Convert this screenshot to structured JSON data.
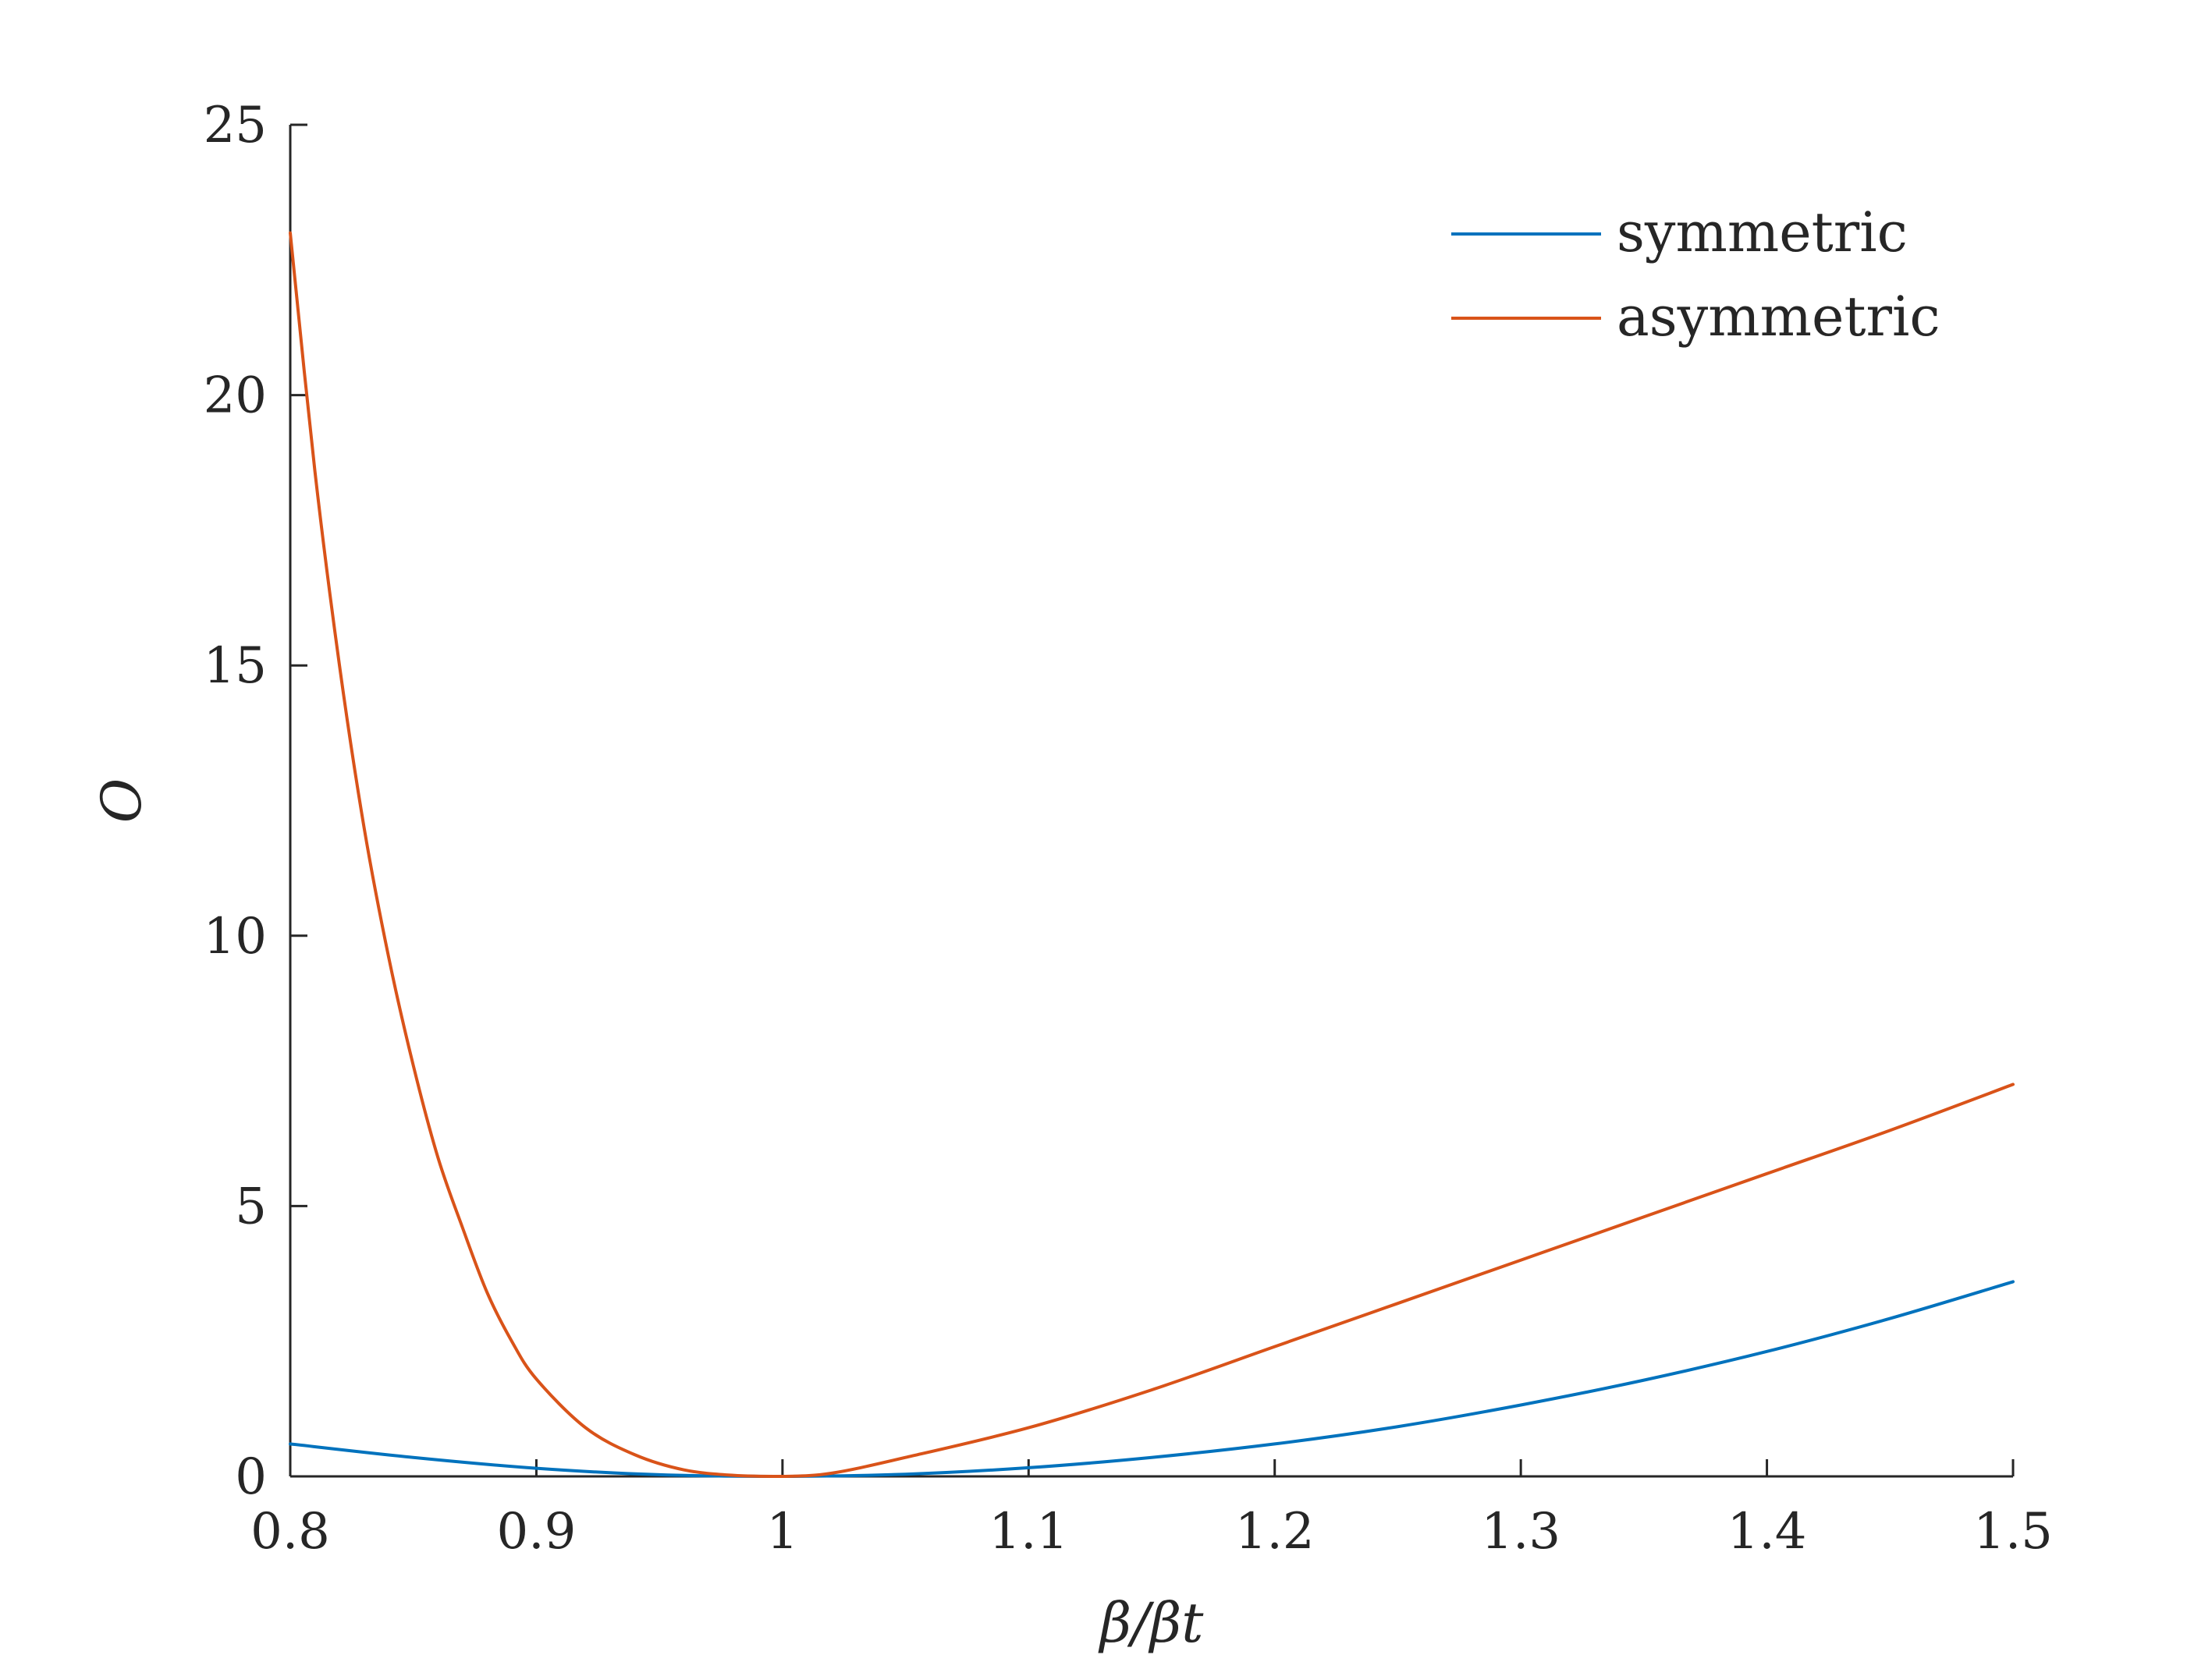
{
  "chart_data": {
    "type": "line",
    "xlabel": "β/βt",
    "ylabel": "O",
    "xlim": [
      0.8,
      1.5
    ],
    "ylim": [
      0,
      25
    ],
    "xticks": [
      0.8,
      0.9,
      1,
      1.1,
      1.2,
      1.3,
      1.4,
      1.5
    ],
    "xtick_labels": [
      "0.8",
      "0.9",
      "1",
      "1.1",
      "1.2",
      "1.3",
      "1.4",
      "1.5"
    ],
    "yticks": [
      0,
      5,
      10,
      15,
      20,
      25
    ],
    "ytick_labels": [
      "0",
      "5",
      "10",
      "15",
      "20",
      "25"
    ],
    "grid": false,
    "legend_position": "top-right",
    "series": [
      {
        "name": "symmetric",
        "color": "#0072BD",
        "x": [
          0.8,
          0.85,
          0.9,
          0.95,
          1.0,
          1.05,
          1.1,
          1.15,
          1.2,
          1.25,
          1.3,
          1.35,
          1.4,
          1.45,
          1.5
        ],
        "y": [
          0.6,
          0.35,
          0.15,
          0.03,
          0.0,
          0.04,
          0.16,
          0.35,
          0.6,
          0.92,
          1.32,
          1.78,
          2.31,
          2.92,
          3.6
        ]
      },
      {
        "name": "asymmetric",
        "color": "#D95319",
        "x": [
          0.8,
          0.81,
          0.82,
          0.83,
          0.84,
          0.85,
          0.86,
          0.87,
          0.88,
          0.89,
          0.9,
          0.92,
          0.94,
          0.96,
          0.98,
          1.0,
          1.02,
          1.05,
          1.1,
          1.15,
          1.2,
          1.25,
          1.3,
          1.35,
          1.4,
          1.45,
          1.5
        ],
        "y": [
          23.0,
          18.6,
          15.0,
          12.0,
          9.6,
          7.6,
          5.9,
          4.6,
          3.4,
          2.5,
          1.8,
          0.9,
          0.4,
          0.12,
          0.02,
          0.0,
          0.06,
          0.35,
          0.9,
          1.6,
          2.4,
          3.2,
          4.0,
          4.8,
          5.6,
          6.4,
          7.25
        ]
      }
    ]
  }
}
